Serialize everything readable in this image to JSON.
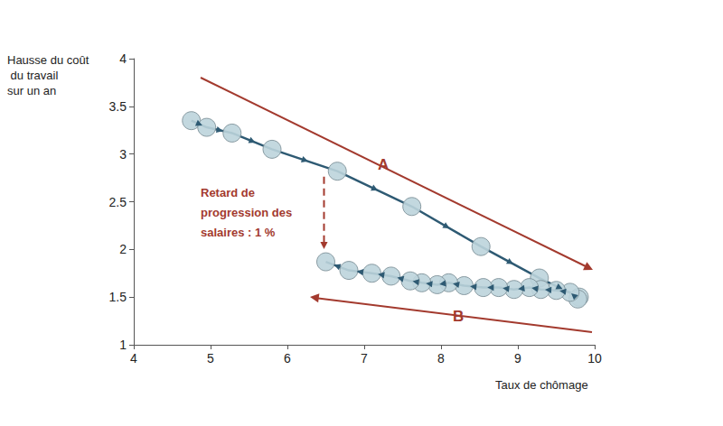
{
  "chart_data": {
    "type": "line",
    "xlabel": "Taux de chômage",
    "ylabel": "Hausse du coût du travail sur un an",
    "xlim": [
      4,
      10
    ],
    "xticks": [
      4,
      5,
      6,
      7,
      8,
      9,
      10
    ],
    "ylim": [
      1,
      4
    ],
    "yticks": [
      1,
      1.5,
      2,
      2.5,
      3,
      3.5,
      4
    ],
    "grid": false,
    "series": [
      {
        "color": "#2e5a73",
        "marker": "circle",
        "line_style": "solid",
        "x": [
          4.75,
          4.95,
          5.28,
          5.8,
          6.65,
          7.62,
          8.52,
          9.28,
          9.8
        ],
        "values": [
          3.35,
          3.28,
          3.22,
          3.05,
          2.82,
          2.45,
          2.03,
          1.7,
          1.5
        ]
      },
      {
        "color": "#2e5a73",
        "marker": "circle",
        "line_style": "solid",
        "x": [
          9.78,
          9.68,
          9.5,
          9.3,
          9.15,
          8.95,
          8.75,
          8.55,
          8.3,
          8.1,
          7.95,
          7.75,
          7.6,
          7.35,
          7.1,
          6.8,
          6.5
        ],
        "values": [
          1.48,
          1.55,
          1.57,
          1.58,
          1.6,
          1.58,
          1.6,
          1.6,
          1.62,
          1.65,
          1.63,
          1.65,
          1.67,
          1.72,
          1.75,
          1.78,
          1.87
        ]
      }
    ],
    "annotations": [
      "A",
      "B",
      "Retard de progression des salaires : 1 %"
    ]
  }
}
